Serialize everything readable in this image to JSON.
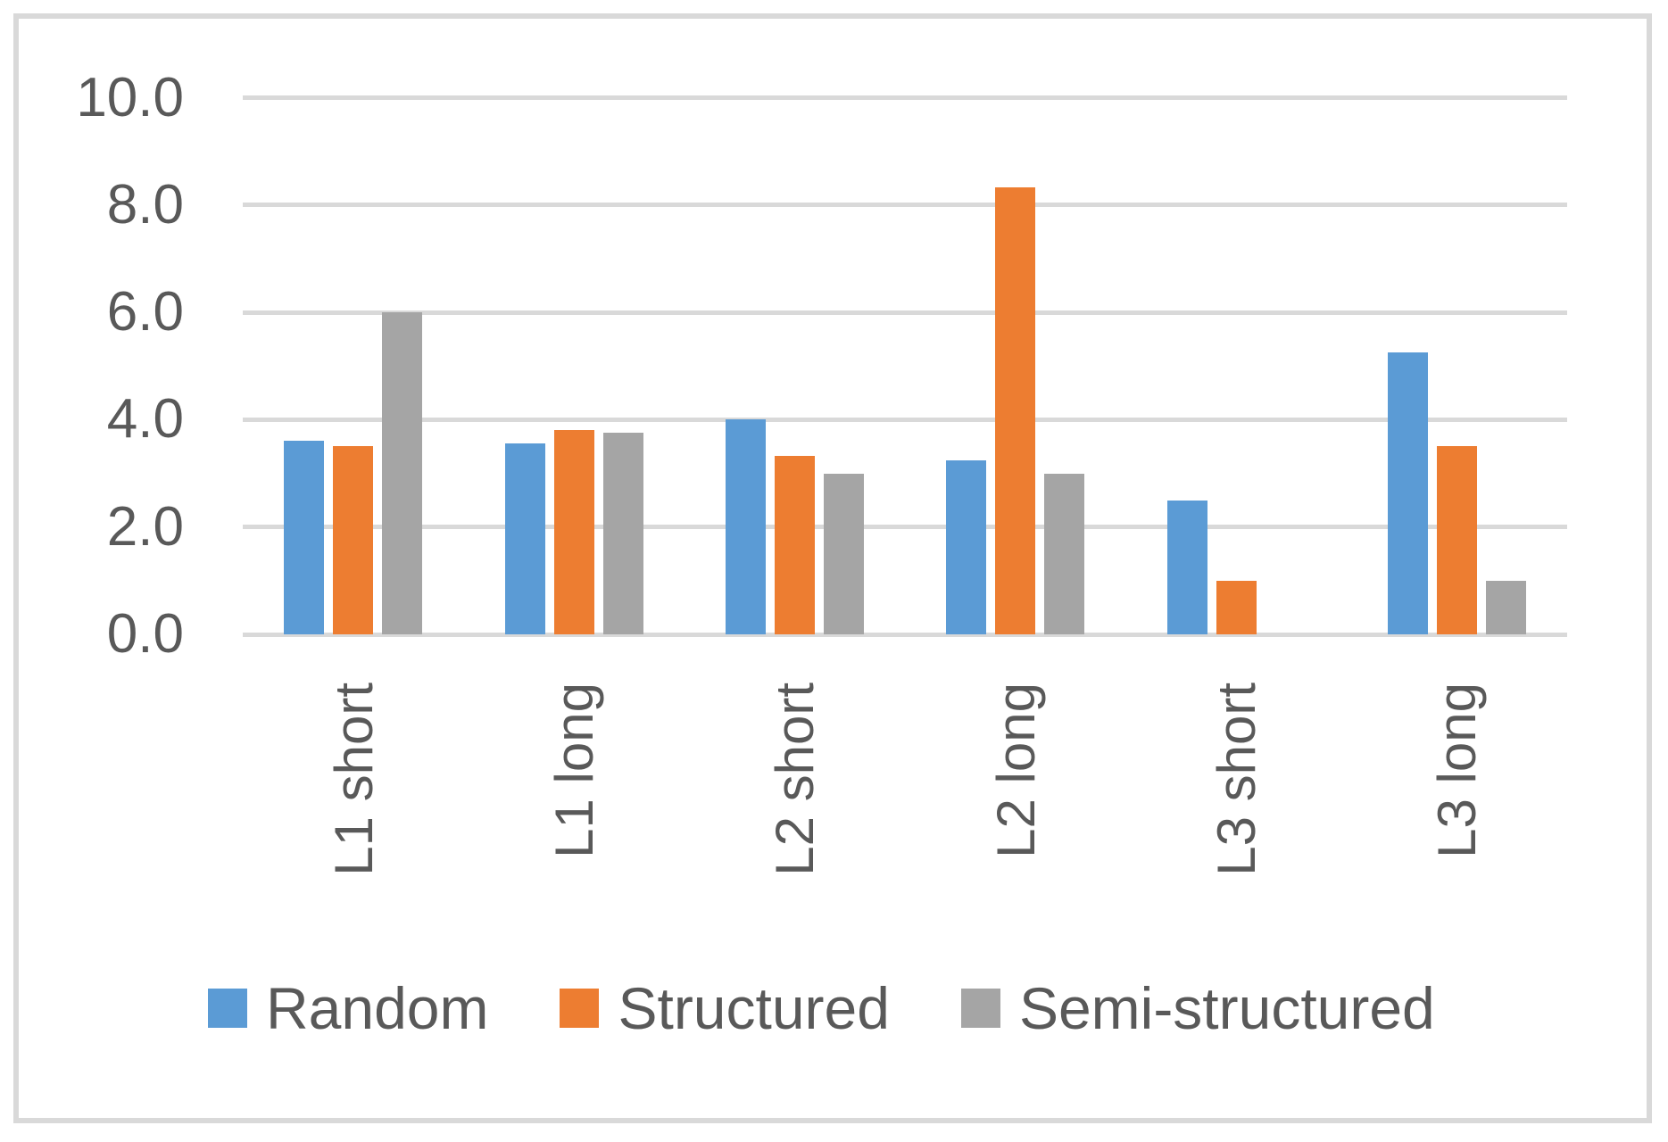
{
  "colors": {
    "random": "#5B9BD5",
    "structured": "#ED7D31",
    "semi_structured": "#A5A5A5",
    "gridline": "#D9D9D9",
    "axis_text": "#595959",
    "frame_border": "#D9D9D9",
    "background": "#FFFFFF"
  },
  "chart_data": {
    "type": "bar",
    "title": "",
    "categories": [
      "L1 short",
      "L1 long",
      "L2 short",
      "L2 long",
      "L3 short",
      "L3 long"
    ],
    "series": [
      {
        "name": "Random",
        "color": "#5B9BD5",
        "values": [
          3.6,
          3.55,
          4.0,
          3.25,
          2.5,
          5.25
        ]
      },
      {
        "name": "Structured",
        "color": "#ED7D31",
        "values": [
          3.5,
          3.8,
          3.33,
          8.33,
          1.0,
          3.5
        ]
      },
      {
        "name": "Semi-structured",
        "color": "#A5A5A5",
        "values": [
          6.0,
          3.75,
          3.0,
          3.0,
          0.0,
          1.0
        ]
      }
    ],
    "ylim": [
      0,
      10
    ],
    "yticks": [
      "0.0",
      "2.0",
      "4.0",
      "6.0",
      "8.0",
      "10.0"
    ],
    "ytick_values": [
      0,
      2,
      4,
      6,
      8,
      10
    ],
    "grid": true,
    "legend_position": "bottom",
    "x_label_rotation_deg": -90
  }
}
